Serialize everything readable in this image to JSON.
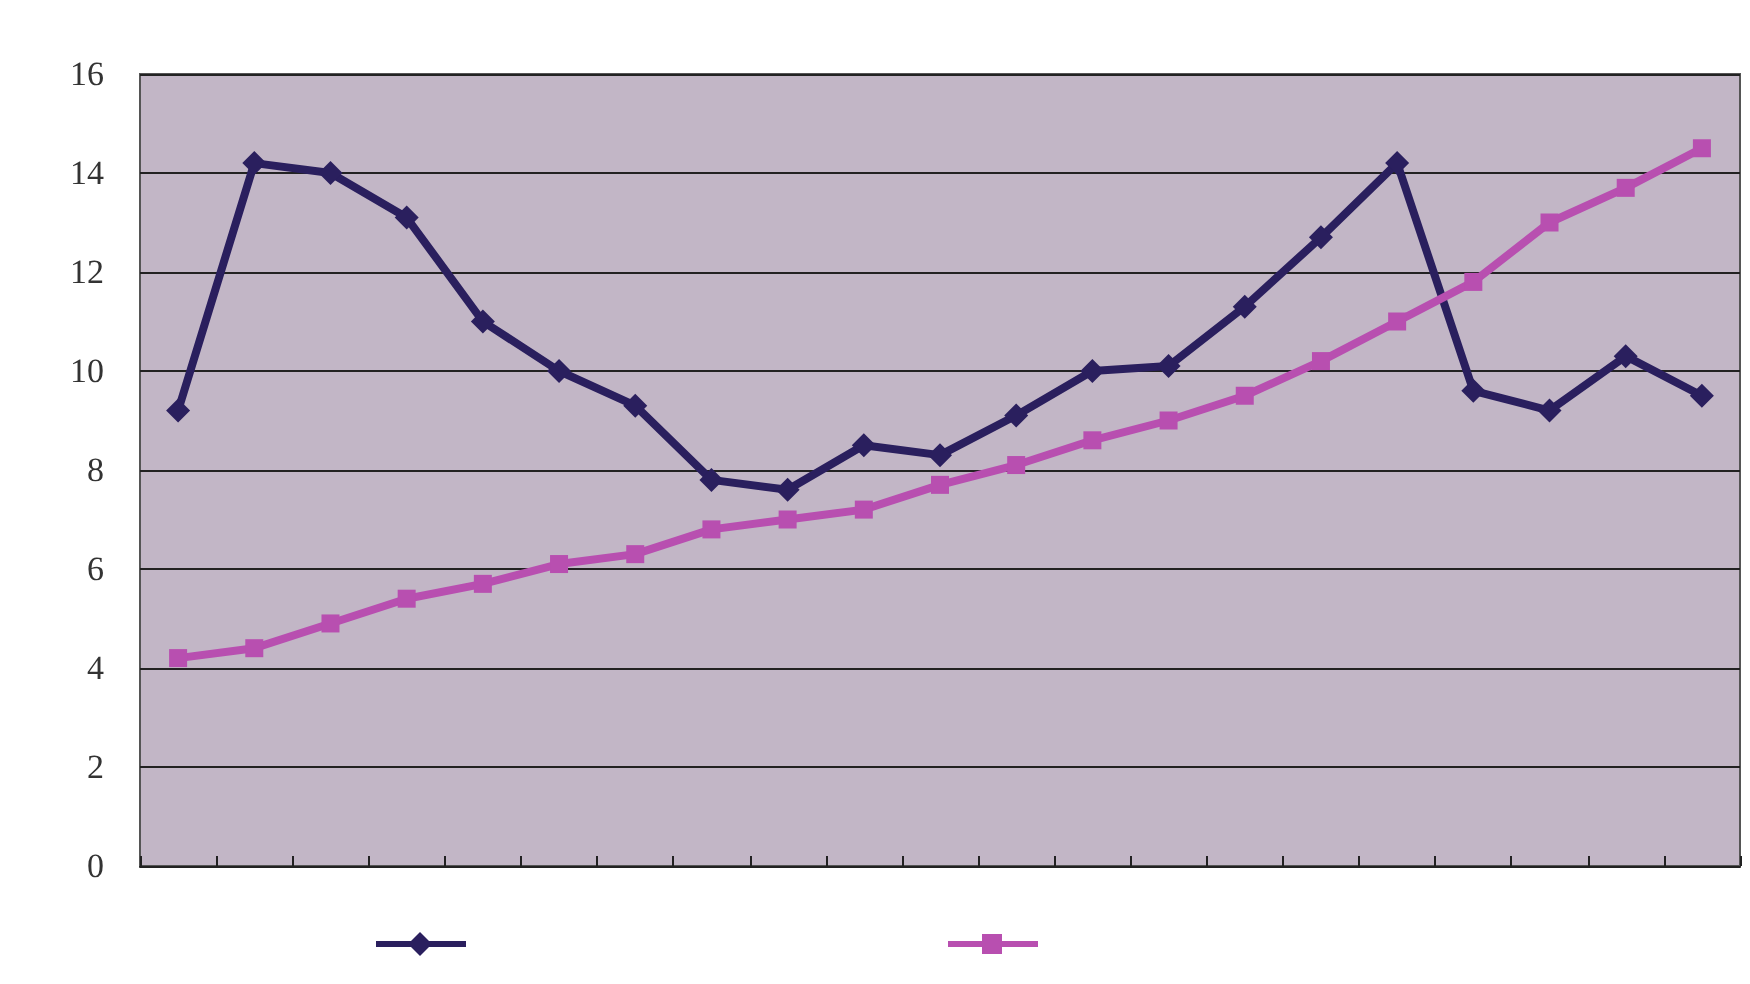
{
  "chart_data": {
    "type": "line",
    "categories": [
      null,
      null,
      null,
      null,
      null,
      null,
      null,
      null,
      null,
      null,
      null,
      null,
      null,
      null,
      null,
      null,
      null,
      null,
      null,
      null,
      null
    ],
    "series": [
      {
        "color": "#2a1f5e",
        "marker": "diamond",
        "values": [
          9.2,
          14.2,
          14.0,
          13.1,
          11.0,
          10.0,
          9.3,
          7.8,
          7.6,
          8.5,
          8.3,
          9.1,
          10.0,
          10.1,
          11.3,
          12.7,
          14.2,
          9.6,
          9.2,
          10.3,
          9.5
        ]
      },
      {
        "color": "#b84fb0",
        "marker": "square",
        "values": [
          4.2,
          4.4,
          4.9,
          5.4,
          5.7,
          6.1,
          6.3,
          6.8,
          7.0,
          7.2,
          7.7,
          8.1,
          8.6,
          9.0,
          9.5,
          10.2,
          11.0,
          11.8,
          13.0,
          13.7,
          14.5
        ]
      }
    ],
    "ylim": [
      0,
      16
    ],
    "yticks": [
      0,
      2,
      4,
      6,
      8,
      10,
      12,
      14,
      16
    ],
    "grid": "y",
    "line_style": "solid"
  }
}
